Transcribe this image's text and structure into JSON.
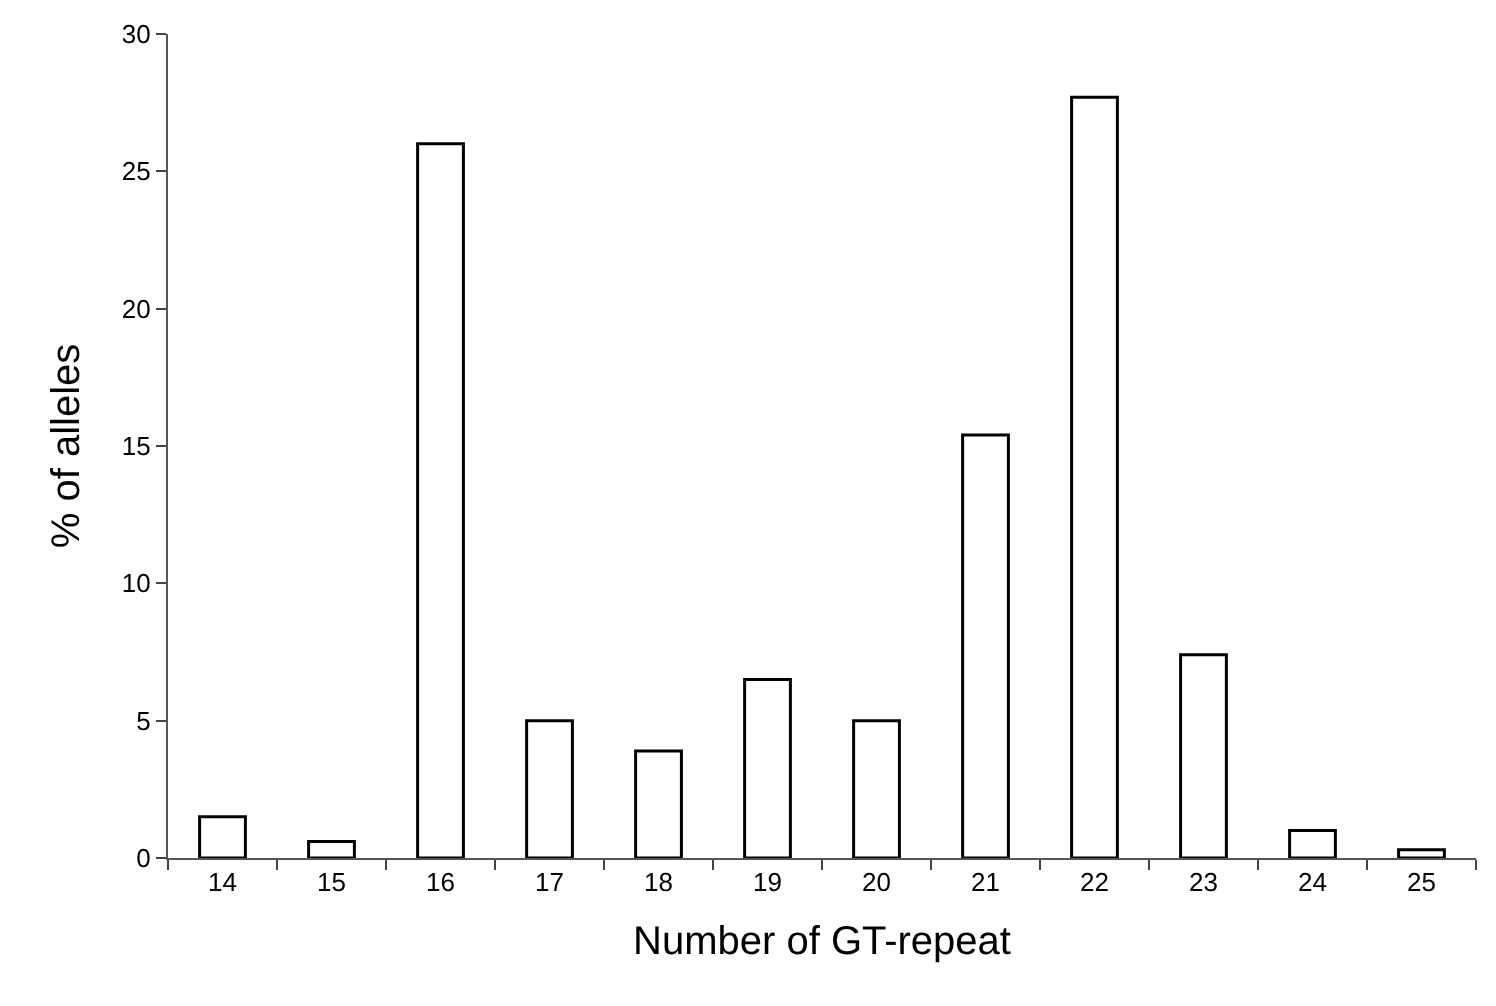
{
  "chart_data": {
    "type": "bar",
    "xlabel": "Number of GT-repeat",
    "ylabel": "% of alleles",
    "categories": [
      "14",
      "15",
      "16",
      "17",
      "18",
      "19",
      "20",
      "21",
      "22",
      "23",
      "24",
      "25"
    ],
    "values": [
      1.5,
      0.6,
      26.0,
      5.0,
      3.9,
      6.5,
      5.0,
      15.4,
      27.7,
      7.4,
      1.0,
      0.3
    ],
    "color": "#ffffff",
    "ylim": [
      0,
      30
    ],
    "yticks": [
      0,
      5,
      10,
      15,
      20,
      25,
      30
    ]
  }
}
